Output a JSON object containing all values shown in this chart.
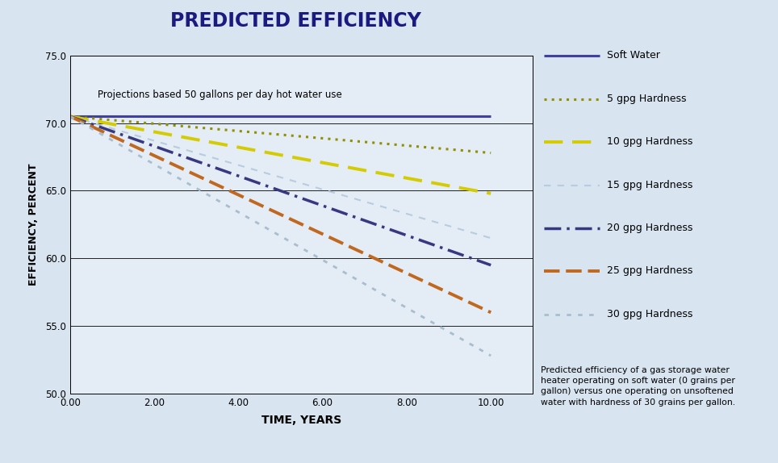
{
  "title": "PREDICTED EFFICIENCY",
  "xlabel": "TIME, YEARS",
  "ylabel": "EFFICIENCY, PERCENT",
  "annotation": "Projections based 50 gallons per day hot water use",
  "description": "Predicted efficiency of a gas storage water\nheater operating on soft water (0 grains per\ngallon) versus one operating on unsoftened\nwater with hardness of 30 grains per gallon.",
  "xlim": [
    0,
    11
  ],
  "ylim": [
    50.0,
    75.0
  ],
  "xticks": [
    0.0,
    2.0,
    4.0,
    6.0,
    8.0,
    10.0
  ],
  "yticks": [
    50.0,
    55.0,
    60.0,
    65.0,
    70.0,
    75.0
  ],
  "background_color": "#d8e4f0",
  "plot_bg_color": "#e4ecf5",
  "title_color": "#1a1a80",
  "series": [
    {
      "label": "Soft Water",
      "x0": 0,
      "y0": 70.5,
      "x1": 10,
      "y1": 70.5,
      "color": "#4040a0",
      "linestyle": "solid",
      "linewidth": 2.2
    },
    {
      "label": "5 gpg Hardness",
      "x0": 0,
      "y0": 70.5,
      "x1": 10,
      "y1": 67.8,
      "color": "#909000",
      "linestyle": "dotted",
      "linewidth": 2.2,
      "dot_pattern": [
        1,
        2
      ]
    },
    {
      "label": "10 gpg Hardness",
      "x0": 0,
      "y0": 70.5,
      "x1": 10,
      "y1": 64.8,
      "color": "#d4cc00",
      "linestyle": "dashed",
      "linewidth": 2.8,
      "dash_pattern": [
        6,
        3
      ]
    },
    {
      "label": "15 gpg Hardness",
      "x0": 0,
      "y0": 70.5,
      "x1": 10,
      "y1": 61.5,
      "color": "#b8cce0",
      "linestyle": "dashed",
      "linewidth": 1.5,
      "dash_pattern": [
        4,
        4
      ]
    },
    {
      "label": "20 gpg Hardness",
      "x0": 0,
      "y0": 70.5,
      "x1": 10,
      "y1": 59.5,
      "color": "#383880",
      "linestyle": "dashdot",
      "linewidth": 2.5,
      "dash_pattern": [
        6,
        2,
        1,
        2
      ]
    },
    {
      "label": "25 gpg Hardness",
      "x0": 0,
      "y0": 70.5,
      "x1": 10,
      "y1": 56.0,
      "color": "#c06820",
      "linestyle": "dashed",
      "linewidth": 2.8,
      "dash_pattern": [
        5,
        2
      ]
    },
    {
      "label": "30 gpg Hardness",
      "x0": 0,
      "y0": 70.5,
      "x1": 10,
      "y1": 52.8,
      "color": "#a8bece",
      "linestyle": "dotted",
      "linewidth": 2.0,
      "dot_pattern": [
        2,
        3
      ]
    }
  ]
}
